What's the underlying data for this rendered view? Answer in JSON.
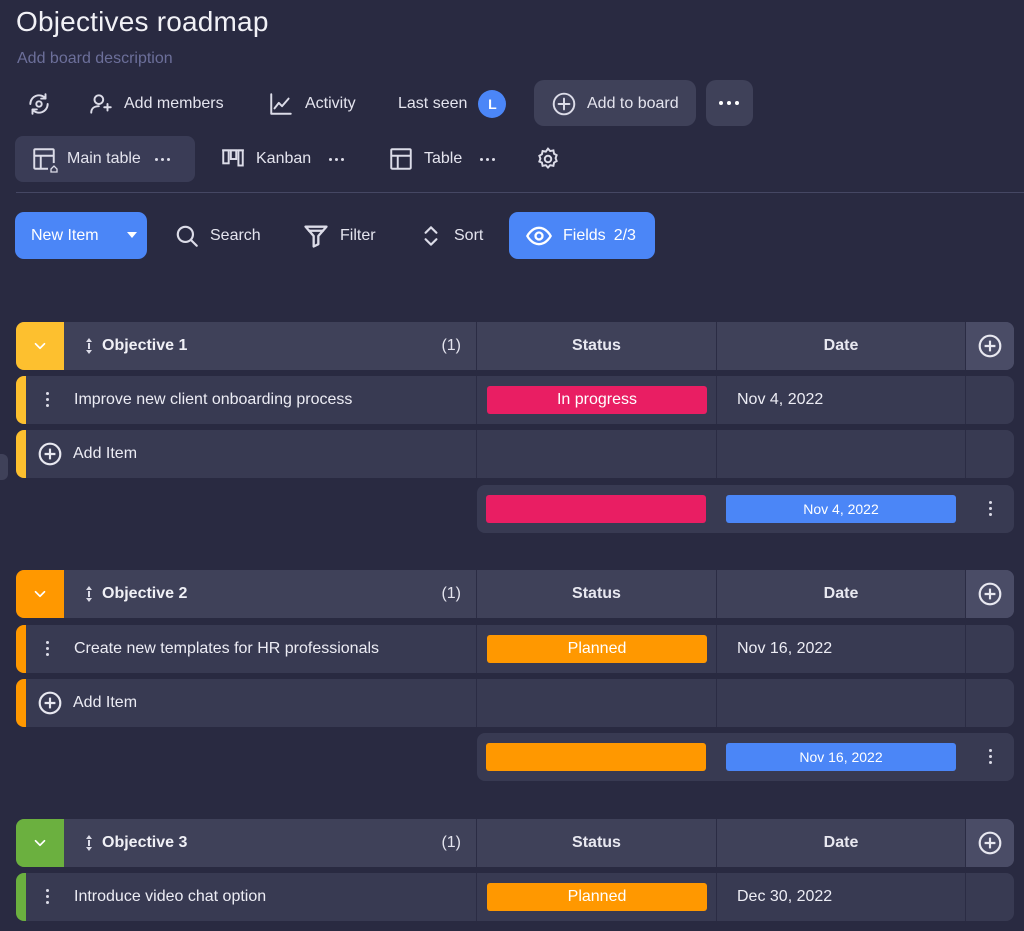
{
  "board": {
    "title": "Objectives roadmap",
    "description_placeholder": "Add board description"
  },
  "actions": {
    "add_members": "Add members",
    "activity": "Activity",
    "last_seen": "Last seen",
    "last_seen_avatar": "L",
    "add_to_board": "Add to board"
  },
  "views": {
    "main_table": "Main table",
    "kanban": "Kanban",
    "table": "Table"
  },
  "toolbar": {
    "new_item": "New Item",
    "search": "Search",
    "filter": "Filter",
    "sort": "Sort",
    "fields": "Fields",
    "fields_count": "2/3"
  },
  "columns": {
    "status": "Status",
    "date": "Date"
  },
  "add_item_label": "Add Item",
  "colors": {
    "accent_blue": "#4b86f7",
    "in_progress": "#e91e63",
    "planned": "#ff9800",
    "objective1": "#fdc02f",
    "objective2": "#ff9800",
    "objective3": "#6bb03f"
  },
  "groups": [
    {
      "name": "Objective 1",
      "count": "(1)",
      "items": [
        {
          "name": "Improve new client onboarding process",
          "status": "In progress",
          "date": "Nov 4, 2022"
        }
      ],
      "summary_date": "Nov 4, 2022"
    },
    {
      "name": "Objective 2",
      "count": "(1)",
      "items": [
        {
          "name": "Create new templates for HR professionals",
          "status": "Planned",
          "date": "Nov 16, 2022"
        }
      ],
      "summary_date": "Nov 16, 2022"
    },
    {
      "name": "Objective 3",
      "count": "(1)",
      "items": [
        {
          "name": "Introduce video chat option",
          "status": "Planned",
          "date": "Dec 30, 2022"
        }
      ]
    }
  ]
}
